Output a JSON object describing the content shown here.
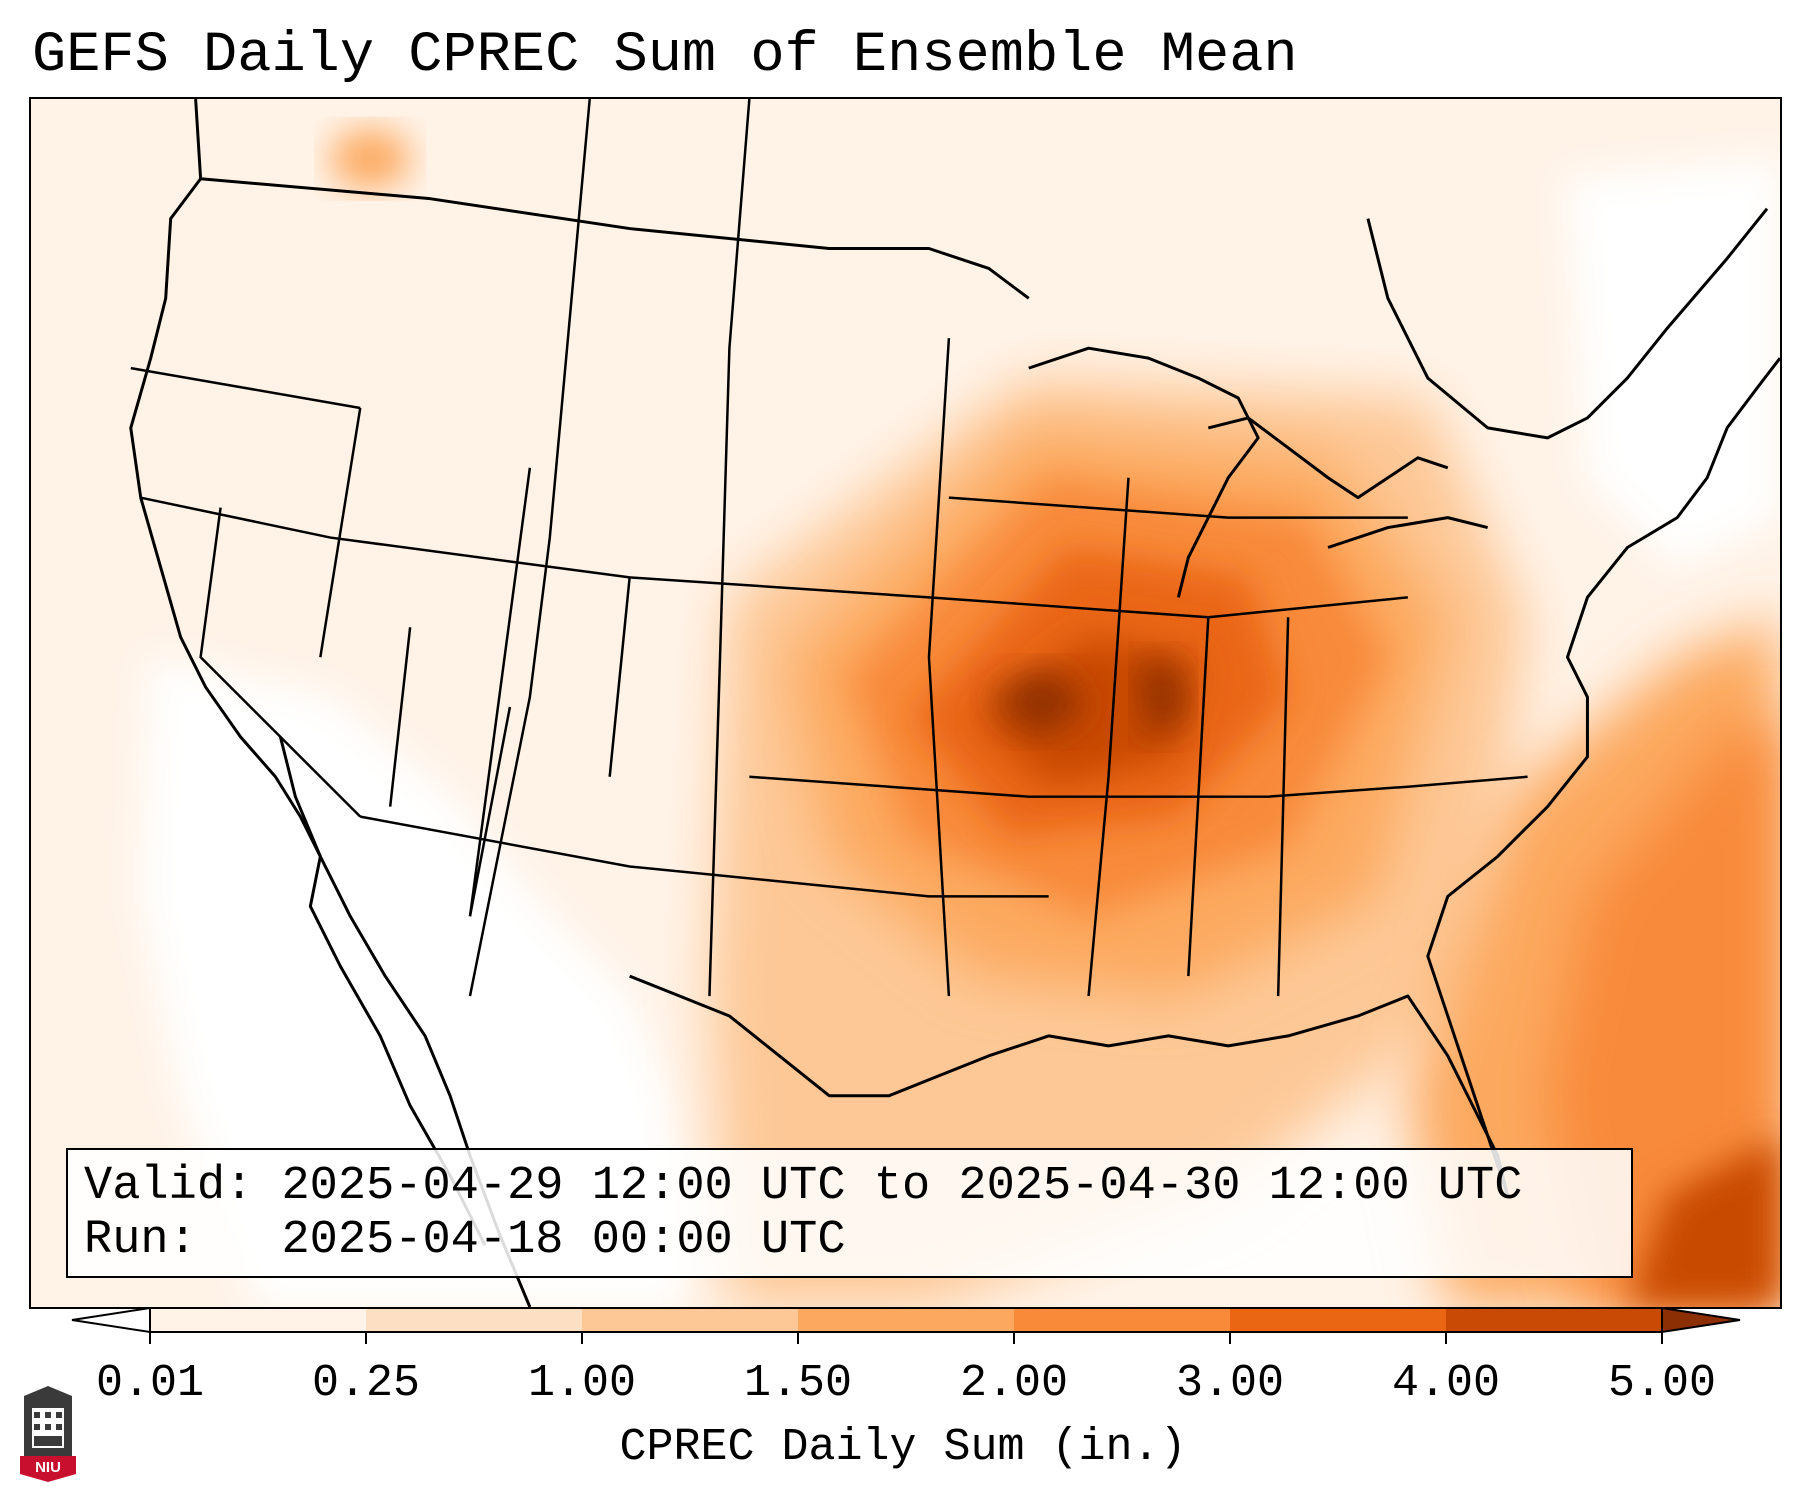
{
  "title": "GEFS Daily CPREC Sum of Ensemble Mean",
  "info": {
    "valid_label": "Valid:",
    "valid_value": "2025-04-29 12:00 UTC to 2025-04-30 12:00 UTC",
    "run_label": "Run:",
    "run_value": "2025-04-18 00:00 UTC"
  },
  "colorbar": {
    "label": "CPREC Daily Sum (in.)",
    "ticks": [
      "0.01",
      "0.25",
      "1.00",
      "1.50",
      "2.00",
      "3.00",
      "4.00",
      "5.00"
    ],
    "colors": [
      "#fff3e8",
      "#fde0c4",
      "#fdc896",
      "#fca95f",
      "#f88a3a",
      "#ea6612",
      "#c84a05",
      "#8c2f05"
    ],
    "under_color": "#ffffff",
    "over_color": "#8c2f05"
  },
  "map": {
    "projection": "Lambert Conformal (CONUS)",
    "coastline_color": "#000000",
    "ocean_edge_color": "#ffffff"
  },
  "logo_text": "NIU",
  "logo_color": "#c8102e"
}
